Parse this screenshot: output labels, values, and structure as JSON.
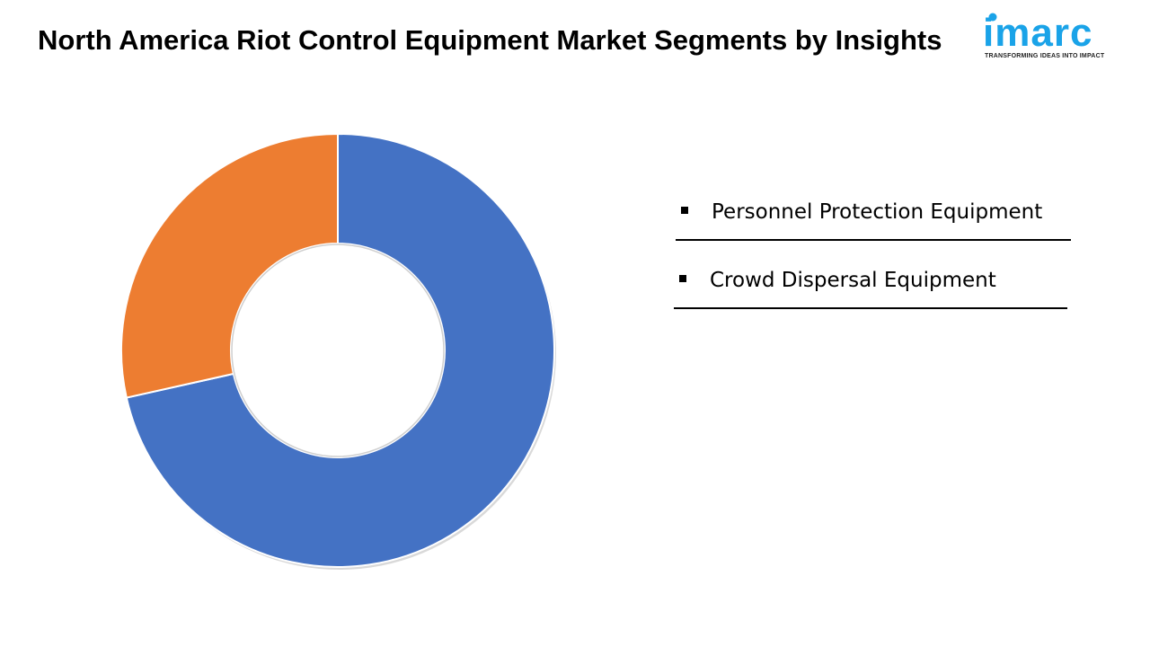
{
  "header": {
    "title": "North America Riot Control Equipment Market Segments by Insights"
  },
  "logo": {
    "wordmark": "imarc",
    "tagline": "TRANSFORMING IDEAS INTO IMPACT",
    "color": "#1aa3e8"
  },
  "chart_data": {
    "type": "pie",
    "donut": true,
    "title": "North America Riot Control Equipment Market Segments by Insights",
    "categories": [
      "Personnel Protection Equipment",
      "Crowd Dispersal Equipment"
    ],
    "values": [
      71.5,
      28.5
    ],
    "colors": [
      "#4472c4",
      "#ed7d31"
    ],
    "legend": "right"
  }
}
